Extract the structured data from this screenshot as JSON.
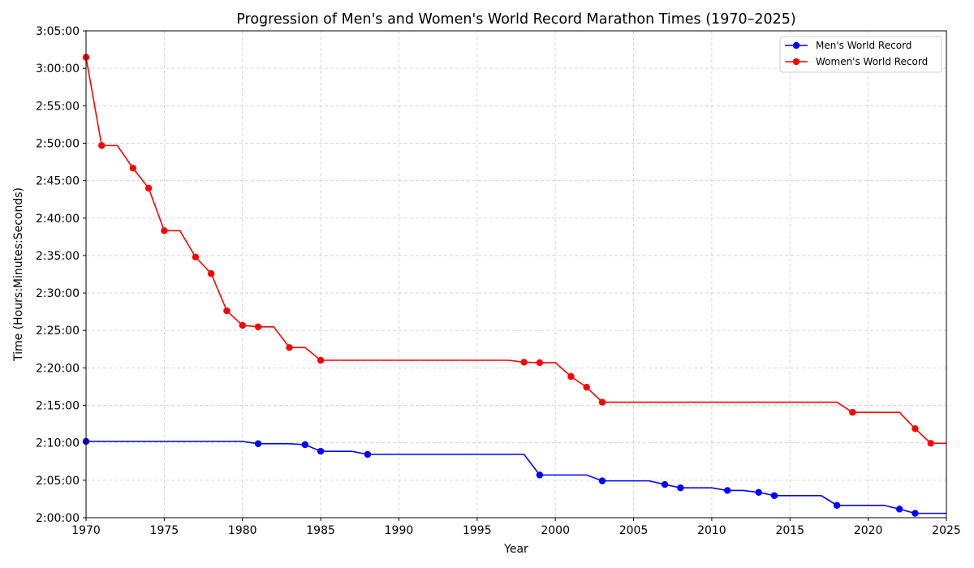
{
  "chart_data": {
    "type": "line",
    "title": "Progression of Men's and Women's World Record Marathon Times (1970–2025)",
    "xlabel": "Year",
    "ylabel": "Time (Hours:Minutes:Seconds)",
    "xlim": [
      1970,
      2025
    ],
    "ylim_seconds": [
      7200,
      11100
    ],
    "x_ticks": [
      1970,
      1975,
      1980,
      1985,
      1990,
      1995,
      2000,
      2005,
      2010,
      2015,
      2020,
      2025
    ],
    "y_ticks_seconds": [
      7200,
      7500,
      7800,
      8100,
      8400,
      8700,
      9000,
      9300,
      9600,
      9900,
      10200,
      10500,
      10800,
      11100
    ],
    "y_tick_labels": [
      "2:00:00",
      "2:05:00",
      "2:10:00",
      "2:15:00",
      "2:20:00",
      "2:25:00",
      "2:30:00",
      "2:35:00",
      "2:40:00",
      "2:45:00",
      "2:50:00",
      "2:55:00",
      "3:00:00",
      "3:05:00"
    ],
    "grid": true,
    "legend_position": "top-right",
    "series": [
      {
        "name": "Men's World Record",
        "color": "#0000ff",
        "records": [
          {
            "year": 1970,
            "seconds": 7811
          },
          {
            "year": 1981,
            "seconds": 7793
          },
          {
            "year": 1984,
            "seconds": 7785
          },
          {
            "year": 1985,
            "seconds": 7732
          },
          {
            "year": 1988,
            "seconds": 7707
          },
          {
            "year": 1999,
            "seconds": 7542
          },
          {
            "year": 2003,
            "seconds": 7495
          },
          {
            "year": 2007,
            "seconds": 7466
          },
          {
            "year": 2008,
            "seconds": 7439
          },
          {
            "year": 2011,
            "seconds": 7418
          },
          {
            "year": 2013,
            "seconds": 7403
          },
          {
            "year": 2014,
            "seconds": 7377
          },
          {
            "year": 2018,
            "seconds": 7299
          },
          {
            "year": 2022,
            "seconds": 7269
          },
          {
            "year": 2023,
            "seconds": 7235
          }
        ]
      },
      {
        "name": "Women's World Record",
        "color": "#ff0000",
        "records": [
          {
            "year": 1970,
            "seconds": 10888
          },
          {
            "year": 1971,
            "seconds": 10181
          },
          {
            "year": 1973,
            "seconds": 10000
          },
          {
            "year": 1974,
            "seconds": 9840
          },
          {
            "year": 1975,
            "seconds": 9499
          },
          {
            "year": 1977,
            "seconds": 9288
          },
          {
            "year": 1978,
            "seconds": 9155
          },
          {
            "year": 1979,
            "seconds": 8857
          },
          {
            "year": 1980,
            "seconds": 8741
          },
          {
            "year": 1981,
            "seconds": 8729
          },
          {
            "year": 1983,
            "seconds": 8563
          },
          {
            "year": 1985,
            "seconds": 8461
          },
          {
            "year": 1998,
            "seconds": 8445
          },
          {
            "year": 1999,
            "seconds": 8442
          },
          {
            "year": 2001,
            "seconds": 8331
          },
          {
            "year": 2002,
            "seconds": 8245
          },
          {
            "year": 2003,
            "seconds": 8125
          },
          {
            "year": 2019,
            "seconds": 8044
          },
          {
            "year": 2023,
            "seconds": 7913
          },
          {
            "year": 2024,
            "seconds": 7796
          }
        ]
      }
    ]
  }
}
